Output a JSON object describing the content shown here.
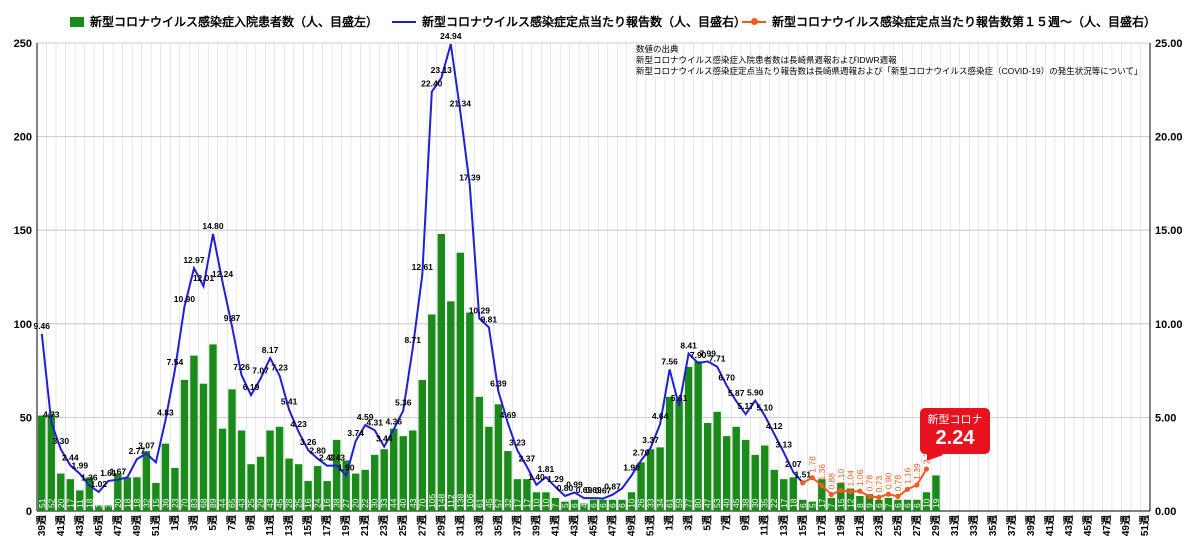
{
  "legend": {
    "bar_label": "新型コロナウイルス感染症入院患者数（人、目盛左）",
    "line_label": "新型コロナウイルス感染症定点当たり報告数（人、目盛右）",
    "line2_label": "新型コロナウイルス感染症定点当たり報告数第１５週～（人、目盛右）"
  },
  "source": {
    "l1": "数値の出典",
    "l2": "新型コロナウイルス感染症入院患者数は長崎県週報およびIDWR週報",
    "l3": "新型コロナウイルス感染症定点当たり報告数は長崎県週報および「新型コロナウイルス感染症（COVID-19）の発生状況等について」"
  },
  "callout": {
    "title": "新型コロナ",
    "value": "2.24"
  },
  "colors": {
    "bar": "#1a8a1a",
    "line": "#1f1fd6",
    "line2": "#f05a22",
    "grid": "#d9d9d9",
    "callout": "#e8121e"
  },
  "chart_data": {
    "type": "bar+line",
    "ylim_left": [
      0,
      250
    ],
    "ylim_right": [
      0,
      25
    ],
    "yticks_left": [
      "0",
      "50",
      "100",
      "150",
      "200",
      "250"
    ],
    "yticks_right": [
      "0.00",
      "5.00",
      "10.00",
      "15.00",
      "20.00",
      "25.00"
    ],
    "grid": true,
    "legend_position": "top",
    "x_tick_labels": [
      "39週",
      "41週",
      "43週",
      "45週",
      "47週",
      "49週",
      "51週",
      "1週",
      "3週",
      "5週",
      "7週",
      "9週",
      "11週",
      "13週",
      "15週",
      "17週",
      "19週",
      "21週",
      "23週",
      "25週",
      "27週",
      "29週",
      "31週",
      "33週",
      "35週",
      "37週",
      "39週",
      "41週",
      "43週",
      "45週",
      "47週",
      "49週",
      "51週",
      "1週",
      "3週",
      "5週",
      "7週",
      "9週",
      "11週",
      "13週",
      "15週",
      "17週",
      "19週",
      "21週",
      "23週",
      "25週",
      "27週",
      "29週",
      "31週",
      "33週",
      "35週",
      "37週",
      "39週",
      "41週",
      "43週",
      "45週",
      "47週",
      "49週",
      "51週"
    ],
    "n_weeks": 117,
    "bars": [
      51,
      52,
      20,
      17,
      11,
      18,
      3,
      3,
      20,
      18,
      18,
      32,
      15,
      36,
      23,
      70,
      83,
      68,
      89,
      44,
      65,
      43,
      25,
      29,
      43,
      45,
      28,
      25,
      16,
      24,
      16,
      38,
      27,
      20,
      22,
      30,
      33,
      44,
      40,
      43,
      70,
      105,
      148,
      112,
      138,
      106,
      61,
      45,
      57,
      32,
      17,
      17,
      10,
      10,
      7,
      5,
      6,
      4,
      6,
      6,
      6,
      6,
      10,
      26,
      33,
      34,
      61,
      59,
      77,
      80,
      47,
      53,
      40,
      45,
      38,
      30,
      35,
      22,
      17,
      18,
      6,
      5,
      17,
      7,
      15,
      12,
      8,
      9,
      6,
      7,
      6,
      6,
      6,
      10,
      19
    ],
    "bar_labels": [
      "51",
      "52",
      "20",
      "17",
      "11",
      "18",
      "3",
      "3",
      "20",
      "18",
      "18",
      "32",
      "15",
      "36",
      "23",
      "70",
      "83",
      "68",
      "89",
      "44",
      "65",
      "43",
      "25",
      "29",
      "43",
      "45",
      "28",
      "25",
      "16",
      "24",
      "16",
      "38",
      "27",
      "20",
      "22",
      "30",
      "33",
      "44",
      "40",
      "43",
      "70",
      "105",
      "148",
      "112",
      "138",
      "106",
      "61",
      "45",
      "57",
      "32",
      "17",
      "17",
      "10",
      "10",
      "7",
      "5",
      "6",
      "4",
      "6",
      "6",
      "6",
      "6",
      "10",
      "26",
      "33",
      "34",
      "61",
      "59",
      "77",
      "80",
      "47",
      "53",
      "40",
      "45",
      "38",
      "30",
      "35",
      "22",
      "17",
      "18",
      "6",
      "5",
      "17",
      "7",
      "15",
      "12",
      "8",
      "9",
      "6",
      "7",
      "6",
      "6",
      "6",
      "10",
      "19"
    ],
    "line": [
      9.46,
      4.73,
      3.3,
      2.44,
      1.99,
      1.36,
      1.02,
      1.61,
      1.67,
      1.8,
      2.77,
      3.07,
      2.6,
      4.83,
      7.54,
      10.9,
      12.97,
      12.01,
      14.8,
      12.24,
      9.87,
      7.26,
      6.19,
      7.07,
      8.17,
      7.23,
      5.41,
      4.23,
      3.26,
      2.8,
      2.42,
      2.43,
      1.9,
      3.74,
      4.59,
      4.31,
      3.44,
      4.36,
      5.36,
      8.71,
      12.61,
      22.4,
      23.13,
      24.94,
      21.34,
      17.39,
      10.29,
      9.81,
      6.39,
      4.69,
      3.23,
      2.37,
      1.4,
      1.81,
      1.29,
      0.8,
      0.99,
      0.69,
      0.69,
      0.67,
      0.87,
      1.2,
      1.9,
      2.7,
      3.37,
      4.64,
      7.56,
      5.61,
      8.41,
      7.9,
      7.99,
      7.71,
      6.7,
      5.87,
      5.17,
      5.9,
      5.1,
      4.12,
      3.13,
      2.07,
      1.51
    ],
    "line_labels": [
      "9.46",
      "4.73",
      "3.30",
      "2.44",
      "1.99",
      "1.36",
      "1.02",
      "1.61",
      "1.67",
      "",
      "2.77",
      "3.07",
      "",
      "4.83",
      "7.54",
      "10.90",
      "12.97",
      "12.01",
      "14.80",
      "12.24",
      "9.87",
      "7.26",
      "6.19",
      "7.07",
      "8.17",
      "7.23",
      "5.41",
      "4.23",
      "3.26",
      "2.80",
      "2.42",
      "2.43",
      "1.90",
      "3.74",
      "4.59",
      "4.31",
      "3.44",
      "4.36",
      "5.36",
      "8.71",
      "12.61",
      "22.40",
      "23.13",
      "24.94",
      "21.34",
      "17.39",
      "10.29",
      "9.81",
      "6.39",
      "4.69",
      "3.23",
      "2.37",
      "1.40",
      "1.81",
      "1.29",
      "0.80",
      "0.99",
      "0.69",
      "0.69",
      "0.67",
      "0.87",
      "",
      "1.90",
      "2.70",
      "3.37",
      "4.64",
      "7.56",
      "5.61",
      "8.41",
      "7.90",
      "7.99",
      "7.71",
      "6.70",
      "5.87",
      "5.17",
      "5.90",
      "5.10",
      "4.12",
      "3.13",
      "2.07",
      "1.51"
    ],
    "line2_start_index": 80,
    "line2": [
      1.51,
      1.78,
      1.36,
      0.88,
      1.1,
      1.04,
      1.06,
      0.78,
      0.73,
      0.9,
      0.78,
      1.16,
      1.39,
      2.24
    ],
    "line2_labels": [
      "",
      "1.78",
      "1.36",
      "0.88",
      "1.10",
      "1.04",
      "1.06",
      "0.78",
      "0.73",
      "0.90",
      "0.78",
      "1.16",
      "1.39",
      "2.24"
    ]
  }
}
